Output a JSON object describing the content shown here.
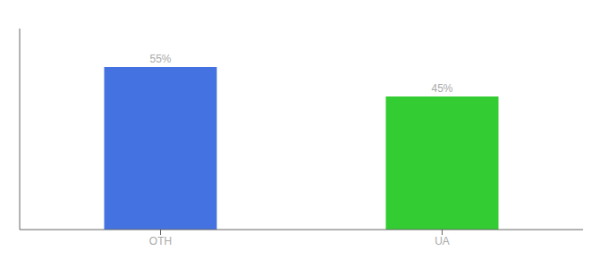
{
  "chart_data": {
    "type": "bar",
    "categories": [
      "OTH",
      "UA"
    ],
    "values": [
      55,
      45
    ],
    "value_labels": [
      "55%",
      "45%"
    ],
    "colors": [
      "#4472e0",
      "#33cc33"
    ],
    "ylim": [
      0,
      68
    ],
    "data_labels": true,
    "tick_labels": "x",
    "grid": false
  }
}
